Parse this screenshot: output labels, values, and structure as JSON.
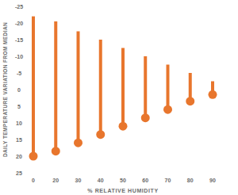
{
  "chart_data": {
    "type": "range",
    "x_label": "% RELATIVE HUMIDITY",
    "y_label": "DAILY TEMPERATURE VARIATION FROM MEDIAN",
    "categories": [
      "0",
      "20",
      "30",
      "40",
      "50",
      "60",
      "70",
      "80",
      "90"
    ],
    "starts": [
      -22,
      -20.5,
      -17.5,
      -15,
      -12.5,
      -10,
      -7.5,
      -5,
      -2.5
    ],
    "values": [
      20,
      18.5,
      16,
      13.5,
      11,
      8.5,
      6,
      3.5,
      1.5
    ],
    "color": "#e8762d",
    "marker": "circle",
    "ylim": [
      25,
      -25
    ],
    "yticks": [
      -25,
      -20,
      -15,
      -10,
      -5,
      0,
      5,
      10,
      15,
      20,
      25
    ],
    "grid": false
  }
}
